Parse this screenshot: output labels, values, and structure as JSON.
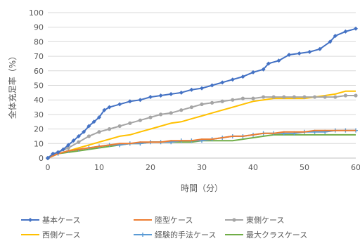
{
  "chart_data": {
    "type": "line",
    "xlabel": "時間（分）",
    "ylabel": "全体充足率（%）",
    "xlim": [
      0,
      60
    ],
    "ylim": [
      0,
      100
    ],
    "xticks": [
      "0",
      "10",
      "20",
      "30",
      "40",
      "50",
      "60"
    ],
    "yticks": [
      "0",
      "10",
      "20",
      "30",
      "40",
      "50",
      "60",
      "70",
      "80",
      "90",
      "100"
    ],
    "grid": "horizontal",
    "legend_position": "bottom",
    "series": [
      {
        "name": "基本ケース",
        "color": "#4472C4",
        "marker": "diamond",
        "points": [
          [
            0,
            0
          ],
          [
            1,
            3
          ],
          [
            2,
            4
          ],
          [
            3,
            6
          ],
          [
            4,
            9
          ],
          [
            5,
            12
          ],
          [
            6,
            15
          ],
          [
            7,
            18
          ],
          [
            8,
            22
          ],
          [
            9,
            25
          ],
          [
            10,
            28
          ],
          [
            11,
            33
          ],
          [
            12,
            35
          ],
          [
            14,
            37
          ],
          [
            16,
            39
          ],
          [
            18,
            40
          ],
          [
            20,
            42
          ],
          [
            22,
            43
          ],
          [
            24,
            44
          ],
          [
            26,
            45
          ],
          [
            28,
            47
          ],
          [
            30,
            48
          ],
          [
            32,
            50
          ],
          [
            34,
            52
          ],
          [
            36,
            54
          ],
          [
            38,
            56
          ],
          [
            40,
            59
          ],
          [
            42,
            61
          ],
          [
            43,
            65
          ],
          [
            45,
            67
          ],
          [
            47,
            71
          ],
          [
            49,
            72
          ],
          [
            51,
            73
          ],
          [
            53,
            75
          ],
          [
            55,
            80
          ],
          [
            56,
            84
          ],
          [
            58,
            87
          ],
          [
            60,
            89
          ]
        ]
      },
      {
        "name": "陸型ケース",
        "color": "#ED7D31",
        "marker": "line",
        "points": [
          [
            0,
            0
          ],
          [
            2,
            3
          ],
          [
            4,
            5
          ],
          [
            6,
            6
          ],
          [
            8,
            7
          ],
          [
            10,
            8
          ],
          [
            12,
            9
          ],
          [
            14,
            10
          ],
          [
            16,
            10
          ],
          [
            18,
            11
          ],
          [
            20,
            11
          ],
          [
            22,
            11
          ],
          [
            24,
            12
          ],
          [
            26,
            12
          ],
          [
            28,
            12
          ],
          [
            30,
            13
          ],
          [
            32,
            13
          ],
          [
            34,
            14
          ],
          [
            36,
            15
          ],
          [
            38,
            15
          ],
          [
            40,
            16
          ],
          [
            42,
            17
          ],
          [
            44,
            17
          ],
          [
            46,
            18
          ],
          [
            48,
            18
          ],
          [
            50,
            18
          ],
          [
            52,
            19
          ],
          [
            54,
            19
          ],
          [
            56,
            19
          ],
          [
            58,
            19
          ],
          [
            60,
            19
          ]
        ]
      },
      {
        "name": "東側ケース",
        "color": "#A5A5A5",
        "marker": "circle",
        "points": [
          [
            0,
            0
          ],
          [
            2,
            4
          ],
          [
            4,
            7
          ],
          [
            6,
            11
          ],
          [
            8,
            15
          ],
          [
            10,
            18
          ],
          [
            12,
            20
          ],
          [
            14,
            22
          ],
          [
            16,
            24
          ],
          [
            18,
            26
          ],
          [
            20,
            28
          ],
          [
            22,
            30
          ],
          [
            24,
            31
          ],
          [
            26,
            33
          ],
          [
            28,
            35
          ],
          [
            30,
            37
          ],
          [
            32,
            38
          ],
          [
            34,
            39
          ],
          [
            36,
            40
          ],
          [
            38,
            41
          ],
          [
            40,
            41
          ],
          [
            42,
            42
          ],
          [
            44,
            42
          ],
          [
            46,
            42
          ],
          [
            48,
            42
          ],
          [
            50,
            42
          ],
          [
            52,
            42
          ],
          [
            54,
            42
          ],
          [
            56,
            42
          ],
          [
            58,
            43
          ],
          [
            60,
            43
          ]
        ]
      },
      {
        "name": "西側ケース",
        "color": "#FFC000",
        "marker": "line",
        "points": [
          [
            0,
            0
          ],
          [
            2,
            3
          ],
          [
            4,
            5
          ],
          [
            6,
            7
          ],
          [
            8,
            9
          ],
          [
            10,
            11
          ],
          [
            12,
            13
          ],
          [
            14,
            15
          ],
          [
            16,
            16
          ],
          [
            18,
            18
          ],
          [
            20,
            20
          ],
          [
            22,
            22
          ],
          [
            24,
            24
          ],
          [
            26,
            25
          ],
          [
            28,
            27
          ],
          [
            30,
            29
          ],
          [
            32,
            31
          ],
          [
            34,
            33
          ],
          [
            36,
            35
          ],
          [
            38,
            37
          ],
          [
            40,
            39
          ],
          [
            42,
            40
          ],
          [
            44,
            41
          ],
          [
            46,
            41
          ],
          [
            48,
            41
          ],
          [
            50,
            41
          ],
          [
            52,
            42
          ],
          [
            54,
            43
          ],
          [
            56,
            44
          ],
          [
            58,
            46
          ],
          [
            60,
            46
          ]
        ]
      },
      {
        "name": "経験的手法ケース",
        "color": "#5B9BD5",
        "marker": "plus",
        "points": [
          [
            0,
            0
          ],
          [
            2,
            3
          ],
          [
            4,
            5
          ],
          [
            6,
            6
          ],
          [
            8,
            7
          ],
          [
            10,
            8
          ],
          [
            12,
            9
          ],
          [
            14,
            9
          ],
          [
            16,
            10
          ],
          [
            18,
            10
          ],
          [
            20,
            11
          ],
          [
            22,
            11
          ],
          [
            24,
            11
          ],
          [
            26,
            12
          ],
          [
            28,
            12
          ],
          [
            30,
            12
          ],
          [
            32,
            13
          ],
          [
            34,
            14
          ],
          [
            36,
            15
          ],
          [
            38,
            15
          ],
          [
            40,
            16
          ],
          [
            42,
            17
          ],
          [
            44,
            17
          ],
          [
            46,
            17
          ],
          [
            48,
            17
          ],
          [
            50,
            18
          ],
          [
            52,
            18
          ],
          [
            54,
            18
          ],
          [
            56,
            19
          ],
          [
            58,
            19
          ],
          [
            60,
            19
          ]
        ]
      },
      {
        "name": "最大クラスケース",
        "color": "#70AD47",
        "marker": "line",
        "points": [
          [
            0,
            0
          ],
          [
            2,
            3
          ],
          [
            4,
            4
          ],
          [
            6,
            5
          ],
          [
            8,
            6
          ],
          [
            10,
            7
          ],
          [
            12,
            8
          ],
          [
            14,
            9
          ],
          [
            16,
            10
          ],
          [
            18,
            10
          ],
          [
            20,
            11
          ],
          [
            22,
            11
          ],
          [
            24,
            11
          ],
          [
            26,
            11
          ],
          [
            28,
            11
          ],
          [
            30,
            12
          ],
          [
            32,
            12
          ],
          [
            34,
            12
          ],
          [
            36,
            12
          ],
          [
            38,
            13
          ],
          [
            40,
            14
          ],
          [
            42,
            15
          ],
          [
            44,
            16
          ],
          [
            46,
            16
          ],
          [
            48,
            16
          ],
          [
            50,
            16
          ],
          [
            52,
            16
          ],
          [
            54,
            16
          ],
          [
            56,
            16
          ],
          [
            58,
            16
          ],
          [
            60,
            16
          ]
        ]
      }
    ]
  }
}
